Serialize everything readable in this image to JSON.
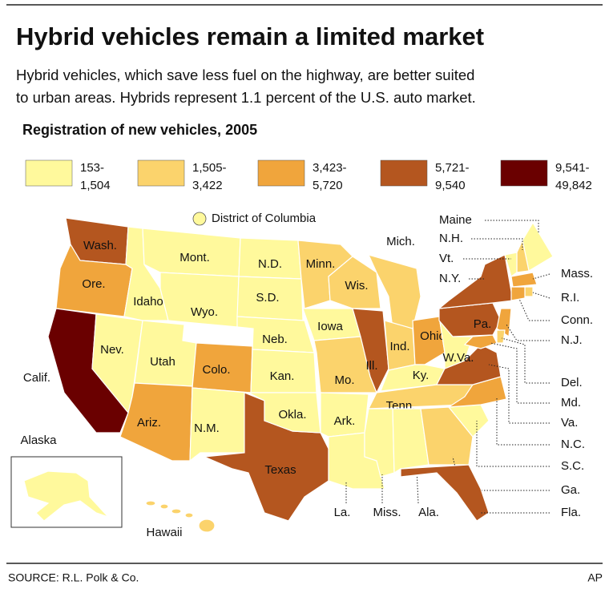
{
  "header": {
    "title": "Hybrid vehicles remain a limited market",
    "subtitle": [
      "Hybrid vehicles, which save less fuel on the highway, are better suited",
      "to urban areas. Hybrids represent 1.1 percent of the U.S. auto market."
    ]
  },
  "legend": {
    "title": "Registration of new vehicles, 2005",
    "items": [
      {
        "lines": [
          "153-",
          "1,504"
        ],
        "color": "#fff99c"
      },
      {
        "lines": [
          "1,505-",
          "3,422"
        ],
        "color": "#fbd36c"
      },
      {
        "lines": [
          "3,423-",
          "5,720"
        ],
        "color": "#f0a53c"
      },
      {
        "lines": [
          "5,721-",
          "9,540"
        ],
        "color": "#b4561f"
      },
      {
        "lines": [
          "9,541-",
          "49,842"
        ],
        "color": "#6a0000"
      }
    ]
  },
  "dc": {
    "label": "District of Columbia",
    "class": 0
  },
  "states": [
    {
      "label": "Wash.",
      "class": 3
    },
    {
      "label": "Ore.",
      "class": 2
    },
    {
      "label": "Calif.",
      "class": 4
    },
    {
      "label": "Nev.",
      "class": 0
    },
    {
      "label": "Idaho",
      "class": 0
    },
    {
      "label": "Mont.",
      "class": 0
    },
    {
      "label": "Wyo.",
      "class": 0
    },
    {
      "label": "Utah",
      "class": 0
    },
    {
      "label": "Colo.",
      "class": 2
    },
    {
      "label": "Ariz.",
      "class": 2
    },
    {
      "label": "N.M.",
      "class": 0
    },
    {
      "label": "Texas",
      "class": 3
    },
    {
      "label": "N.D.",
      "class": 0
    },
    {
      "label": "S.D.",
      "class": 0
    },
    {
      "label": "Neb.",
      "class": 0
    },
    {
      "label": "Kan.",
      "class": 0
    },
    {
      "label": "Okla.",
      "class": 0
    },
    {
      "label": "Minn.",
      "class": 1
    },
    {
      "label": "Iowa",
      "class": 0
    },
    {
      "label": "Mo.",
      "class": 1
    },
    {
      "label": "Ark.",
      "class": 0
    },
    {
      "label": "La.",
      "class": 0
    },
    {
      "label": "Wis.",
      "class": 1
    },
    {
      "label": "Ill.",
      "class": 3
    },
    {
      "label": "Mich.",
      "class": 1
    },
    {
      "label": "Ind.",
      "class": 1
    },
    {
      "label": "Ohio",
      "class": 2
    },
    {
      "label": "Ky.",
      "class": 0
    },
    {
      "label": "Tenn.",
      "class": 1
    },
    {
      "label": "Miss.",
      "class": 0
    },
    {
      "label": "Ala.",
      "class": 0
    },
    {
      "label": "Ga.",
      "class": 1
    },
    {
      "label": "Fla.",
      "class": 3
    },
    {
      "label": "S.C.",
      "class": 0
    },
    {
      "label": "N.C.",
      "class": 2
    },
    {
      "label": "Va.",
      "class": 3
    },
    {
      "label": "W.Va.",
      "class": 0
    },
    {
      "label": "Pa.",
      "class": 3
    },
    {
      "label": "N.Y.",
      "class": 3
    },
    {
      "label": "Maine",
      "class": 0
    },
    {
      "label": "N.H.",
      "class": 1
    },
    {
      "label": "Vt.",
      "class": 0
    },
    {
      "label": "Mass.",
      "class": 2
    },
    {
      "label": "R.I.",
      "class": 1
    },
    {
      "label": "Conn.",
      "class": 2
    },
    {
      "label": "N.J.",
      "class": 2
    },
    {
      "label": "Del.",
      "class": 1
    },
    {
      "label": "Md.",
      "class": 2
    },
    {
      "label": "Alaska",
      "class": 0
    },
    {
      "label": "Hawaii",
      "class": 1
    }
  ],
  "footer": {
    "source": "SOURCE: R.L. Polk & Co.",
    "credit": "AP"
  }
}
